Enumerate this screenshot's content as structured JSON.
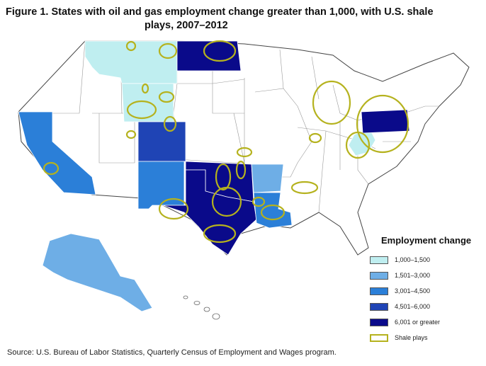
{
  "title": {
    "line1": "Figure 1. States with oil and gas employment change greater than 1,000, with U.S. shale",
    "line2": "plays, 2007–2012"
  },
  "legend": {
    "title": "Employment change",
    "items": [
      {
        "label": "1,000–1,500",
        "color": "#bfeef0"
      },
      {
        "label": "1,501–3,000",
        "color": "#6eaee6"
      },
      {
        "label": "3,001–4,500",
        "color": "#2b7fd8"
      },
      {
        "label": "4,501–6,000",
        "color": "#1f44b5"
      },
      {
        "label": "6,001 or greater",
        "color": "#0a0a8a"
      },
      {
        "label": "Shale plays",
        "color": "#b5b21e"
      }
    ]
  },
  "states": {
    "montana": {
      "category": "1,000–1,500"
    },
    "wyoming": {
      "category": "1,000–1,500"
    },
    "west_virginia": {
      "category": "1,000–1,500"
    },
    "alaska": {
      "category": "1,501–3,000"
    },
    "arkansas": {
      "category": "1,501–3,000"
    },
    "california": {
      "category": "3,001–4,500"
    },
    "new_mexico": {
      "category": "3,001–4,500"
    },
    "louisiana": {
      "category": "3,001–4,500"
    },
    "colorado": {
      "category": "4,501–6,000"
    },
    "north_dakota": {
      "category": "6,001 or greater"
    },
    "oklahoma": {
      "category": "6,001 or greater"
    },
    "texas": {
      "category": "6,001 or greater"
    },
    "pennsylvania": {
      "category": "6,001 or greater"
    }
  },
  "source": "Source:  U.S. Bureau of Labor Statistics,  Quarterly Census of Employment  and Wages program."
}
